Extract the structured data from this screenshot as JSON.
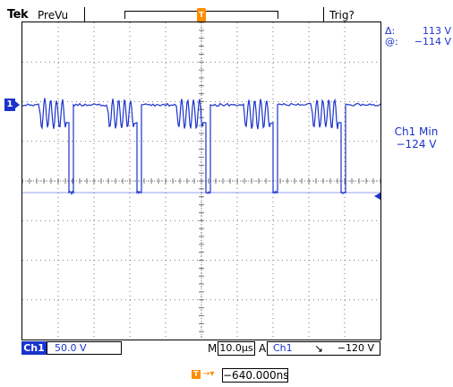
{
  "header": {
    "brand": "Tek",
    "mode": "PreVu",
    "trigger_status": "Trig?",
    "trigger_marker_label": "T"
  },
  "cursor_readout": {
    "delta_label": "Δ:",
    "delta_value": "113 V",
    "at_label": "@:",
    "at_value": "−114 V"
  },
  "measurement": {
    "title": "Ch1 Min",
    "value": "−124 V"
  },
  "channel": {
    "marker": "1",
    "name": "Ch1",
    "scale": "50.0 V"
  },
  "timebase": {
    "mode": "M",
    "value": "10.0µs"
  },
  "trigger": {
    "acq_mode": "A",
    "source": "Ch1",
    "slope_symbol": "↘",
    "level": "−120 V"
  },
  "horizontal_position": {
    "icon_label": "T",
    "arrow": "→▾",
    "value": "−640.000ns"
  },
  "colors": {
    "trace": "#1a33cc",
    "trigger": "#ff8c00",
    "grid": "#555555"
  }
}
